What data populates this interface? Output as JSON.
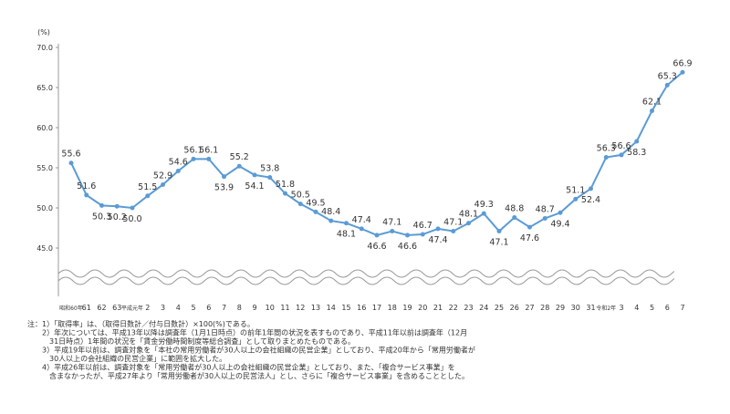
{
  "chart_data": {
    "type": "line",
    "unit_label": "(%)",
    "categories": [
      "昭和60年",
      "61",
      "62",
      "63",
      "平成元年",
      "2",
      "3",
      "4",
      "5",
      "6",
      "7",
      "8",
      "9",
      "10",
      "11",
      "12",
      "13",
      "14",
      "15",
      "16",
      "17",
      "18",
      "19",
      "20",
      "21",
      "22",
      "23",
      "24",
      "25",
      "26",
      "27",
      "28",
      "29",
      "30",
      "31",
      "令和2年",
      "3",
      "4",
      "5",
      "6",
      "7"
    ],
    "values": [
      55.6,
      51.6,
      50.3,
      50.2,
      50.0,
      51.5,
      52.9,
      54.6,
      56.1,
      56.1,
      53.9,
      55.2,
      54.1,
      53.8,
      51.8,
      50.5,
      49.5,
      48.4,
      48.1,
      47.4,
      46.6,
      47.1,
      46.6,
      46.7,
      47.4,
      47.1,
      48.1,
      49.3,
      47.1,
      48.8,
      47.6,
      48.7,
      49.4,
      51.1,
      52.4,
      56.3,
      56.6,
      58.3,
      62.1,
      65.3,
      66.9
    ],
    "value_labels": [
      "55.6",
      "51.6",
      "50.3",
      "50.2",
      "50.0",
      "51.5",
      "52.9",
      "54.6",
      "56.1",
      "56.1",
      "53.9",
      "55.2",
      "54.1",
      "53.8",
      "51.8",
      "50.5",
      "49.5",
      "48.4",
      "48.1",
      "47.4",
      "46.6",
      "47.1",
      "46.6",
      "46.7",
      "47.4",
      "47.1",
      "48.1",
      "49.3",
      "47.1",
      "48.8",
      "47.6",
      "48.7",
      "49.4",
      "51.1",
      "52.4",
      "56.3",
      "56.6",
      "58.3",
      "62.1",
      "65.3",
      "66.9"
    ],
    "color": "#5b9bd5",
    "ylim": [
      45,
      70
    ],
    "yticks": [
      {
        "value": 45,
        "label": "45.0"
      },
      {
        "value": 50,
        "label": "50.0"
      },
      {
        "value": 55,
        "label": "55.0"
      },
      {
        "value": 60,
        "label": "60.0"
      },
      {
        "value": 65,
        "label": "65.0"
      },
      {
        "value": 70,
        "label": "70.0"
      }
    ],
    "grid": false,
    "notes": [
      "注：1）「取得率」は、（取得日数計／付与日数計）×100(%)である。",
      "　　2）年次については、平成13年以降は調査年（1月1日時点）の前年1年間の状況を表すものであり、平成11年以前は調査年（12月",
      "　　　31日時点）1年間の状況を「賃金労働時間制度等総合調査」として取りまとめたものである。",
      "　　3）平成19年以前は、調査対象を「本社の常用労働者が30人以上の会社組織の民営企業」としており、平成20年から「常用労働者が",
      "　　　30人以上の会社組織の民営企業」に範囲を拡大した。",
      "　　4）平成26年以前は、調査対象を「常用労働者が30人以上の会社組織の民営企業」としており、また、「複合サービス事業」を",
      "　　　含まなかったが、平成27年より「常用労働者が30人以上の民営法人」とし、さらに「複合サービス事業」を含めることとした。"
    ]
  }
}
